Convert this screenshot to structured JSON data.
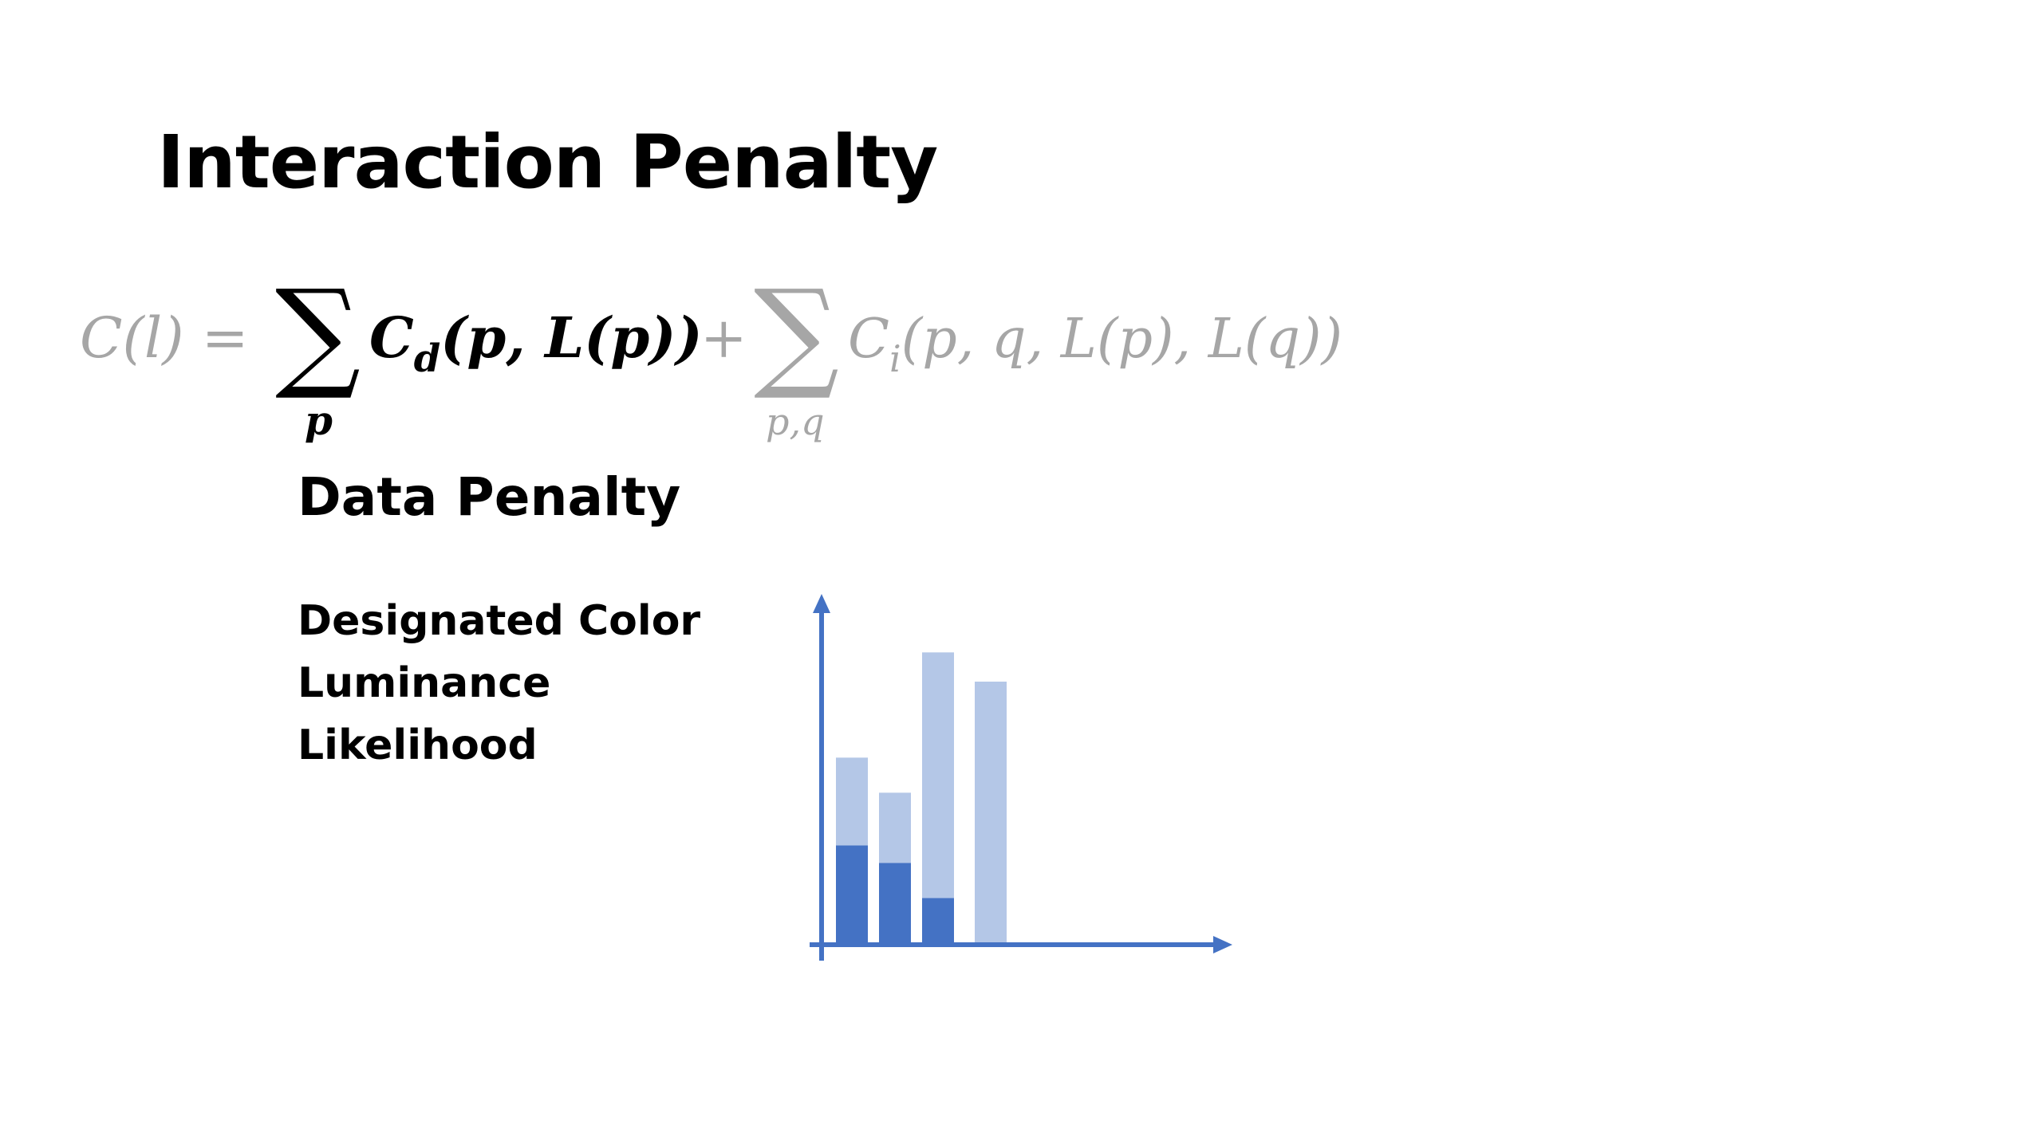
{
  "slide": {
    "title": "Interaction Penalty",
    "formula": {
      "lhs": "C(l) =",
      "sum_symbol": "∑",
      "sum1_index": "p",
      "data_term_main": "C",
      "data_term_sub": "d",
      "data_term_args": "(p, L(p))",
      "plus": "+",
      "sum2_index": "p,q",
      "interaction_term_main": "C",
      "interaction_term_sub": "i",
      "interaction_term_args": "(p, q, L(p), L(q))"
    },
    "data_penalty_label": "Data Penalty",
    "factors": [
      "Designated Color",
      "Luminance",
      "Likelihood"
    ]
  },
  "colors": {
    "text": "#000000",
    "faded": "#a6a6a6",
    "axis": "#4472c4",
    "bar_dark": "#4472c4",
    "bar_light": "#b4c7e7"
  },
  "chart_data": {
    "type": "bar",
    "stacked": true,
    "series": [
      {
        "values": [
          0.34,
          0.28,
          0.16,
          0
        ]
      },
      {
        "values": [
          0.3,
          0.24,
          0.84,
          0.9
        ]
      }
    ],
    "ylim": [
      0,
      1.2
    ],
    "grid": false,
    "axes_arrows": true
  }
}
